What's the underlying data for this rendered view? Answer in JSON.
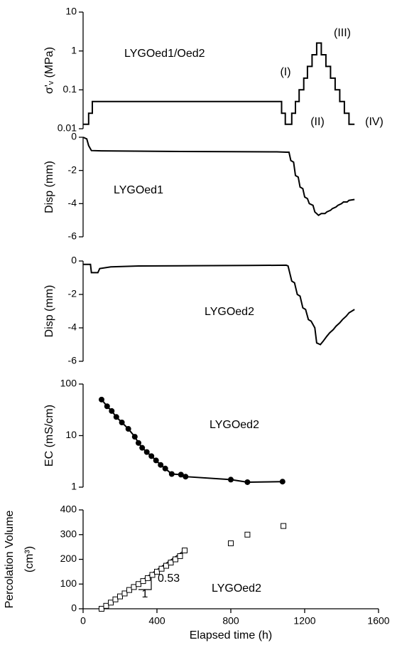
{
  "chart_data": [
    {
      "type": "line",
      "ylabel": "σ'ᵥ (MPa)",
      "log_y": true,
      "xlim": [
        0,
        1600
      ],
      "ylim": [
        0.01,
        10
      ],
      "yticks": [
        0.01,
        0.1,
        1,
        10
      ],
      "annotations": [
        "LYGOed1/Oed2",
        "(I)",
        "(II)",
        "(III)",
        "(IV)"
      ],
      "series": [
        {
          "color": "#000000",
          "x": [
            0,
            30,
            30,
            50,
            50,
            1075,
            1075,
            1095,
            1095,
            1130,
            1130,
            1150,
            1150,
            1170,
            1170,
            1195,
            1195,
            1215,
            1215,
            1240,
            1240,
            1265,
            1265,
            1290,
            1290,
            1315,
            1315,
            1340,
            1340,
            1365,
            1365,
            1390,
            1390,
            1415,
            1415,
            1440,
            1440,
            1470
          ],
          "values": [
            0.013,
            0.013,
            0.025,
            0.025,
            0.05,
            0.05,
            0.025,
            0.025,
            0.013,
            0.013,
            0.025,
            0.025,
            0.05,
            0.05,
            0.1,
            0.1,
            0.2,
            0.2,
            0.4,
            0.4,
            0.8,
            0.8,
            1.6,
            1.6,
            0.8,
            0.8,
            0.4,
            0.4,
            0.2,
            0.2,
            0.1,
            0.1,
            0.05,
            0.05,
            0.025,
            0.025,
            0.013,
            0.013
          ]
        }
      ]
    },
    {
      "type": "line",
      "ylabel": "Disp (mm)",
      "xlim": [
        0,
        1600
      ],
      "ylim": [
        -6,
        0
      ],
      "yticks": [
        -6,
        -4,
        -2,
        0
      ],
      "annotations": [
        "LYGOed1"
      ],
      "series": [
        {
          "color": "#000000",
          "x": [
            0,
            20,
            30,
            45,
            100,
            400,
            800,
            1050,
            1100,
            1115,
            1125,
            1140,
            1150,
            1165,
            1175,
            1190,
            1200,
            1215,
            1225,
            1245,
            1255,
            1275,
            1290,
            1310,
            1320,
            1340,
            1350,
            1370,
            1380,
            1400,
            1410,
            1430,
            1440,
            1470
          ],
          "values": [
            0,
            -0.1,
            -0.5,
            -0.8,
            -0.82,
            -0.85,
            -0.87,
            -0.88,
            -0.9,
            -0.9,
            -1.4,
            -1.5,
            -2.3,
            -2.4,
            -3.0,
            -3.1,
            -3.6,
            -3.7,
            -4.0,
            -4.1,
            -4.5,
            -4.7,
            -4.6,
            -4.6,
            -4.5,
            -4.4,
            -4.3,
            -4.2,
            -4.1,
            -4.0,
            -3.9,
            -3.9,
            -3.8,
            -3.75
          ]
        }
      ]
    },
    {
      "type": "line",
      "ylabel": "Disp (mm)",
      "xlim": [
        0,
        1600
      ],
      "ylim": [
        -6,
        0
      ],
      "yticks": [
        -6,
        -4,
        -2,
        0
      ],
      "annotations": [
        "LYGOed2"
      ],
      "series": [
        {
          "color": "#000000",
          "x": [
            0,
            40,
            45,
            80,
            90,
            150,
            300,
            600,
            900,
            1100,
            1110,
            1130,
            1145,
            1160,
            1175,
            1190,
            1205,
            1220,
            1235,
            1255,
            1265,
            1285,
            1300,
            1320,
            1335,
            1355,
            1370,
            1390,
            1405,
            1425,
            1440,
            1470
          ],
          "values": [
            -0.2,
            -0.2,
            -0.7,
            -0.7,
            -0.45,
            -0.35,
            -0.3,
            -0.28,
            -0.27,
            -0.25,
            -0.3,
            -1.2,
            -1.3,
            -2.0,
            -2.1,
            -2.8,
            -2.9,
            -3.5,
            -3.6,
            -4.0,
            -4.9,
            -5.0,
            -4.8,
            -4.5,
            -4.3,
            -4.1,
            -3.9,
            -3.7,
            -3.5,
            -3.3,
            -3.1,
            -2.9
          ]
        }
      ]
    },
    {
      "type": "line",
      "ylabel": "EC (mS/cm)",
      "log_y": true,
      "markers": true,
      "xlim": [
        0,
        1600
      ],
      "ylim": [
        1,
        100
      ],
      "yticks": [
        1,
        10,
        100
      ],
      "annotations": [
        "LYGOed2"
      ],
      "series": [
        {
          "color": "#000000",
          "x": [
            100,
            130,
            155,
            180,
            210,
            245,
            280,
            300,
            320,
            345,
            370,
            395,
            420,
            445,
            480,
            530,
            555,
            800,
            890,
            1080
          ],
          "values": [
            50,
            37,
            30,
            23,
            18,
            13.5,
            9.5,
            7.2,
            5.8,
            4.8,
            4,
            3.3,
            2.7,
            2.3,
            1.8,
            1.75,
            1.6,
            1.4,
            1.25,
            1.28
          ]
        }
      ]
    },
    {
      "type": "scatter",
      "ylabel": [
        "Percolation Volume",
        "(cm³)"
      ],
      "xlabel": "Elapsed time (h)",
      "xlim": [
        0,
        1600
      ],
      "xticks": [
        0,
        400,
        800,
        1200,
        1600
      ],
      "ylim": [
        0,
        400
      ],
      "yticks": [
        0,
        100,
        200,
        300,
        400
      ],
      "annotations": [
        "LYGOed2",
        "0.53",
        "1"
      ],
      "fit": {
        "x": [
          100,
          555
        ],
        "values": [
          0,
          240
        ]
      },
      "series": [
        {
          "color": "#000000",
          "x": [
            100,
            125,
            150,
            175,
            200,
            225,
            250,
            275,
            300,
            325,
            350,
            375,
            400,
            425,
            450,
            475,
            500,
            525,
            550,
            800,
            890,
            1085
          ],
          "values": [
            0,
            12,
            25,
            38,
            50,
            62,
            76,
            88,
            100,
            112,
            124,
            137,
            150,
            162,
            174,
            187,
            200,
            213,
            236,
            265,
            300,
            335
          ]
        }
      ]
    }
  ]
}
